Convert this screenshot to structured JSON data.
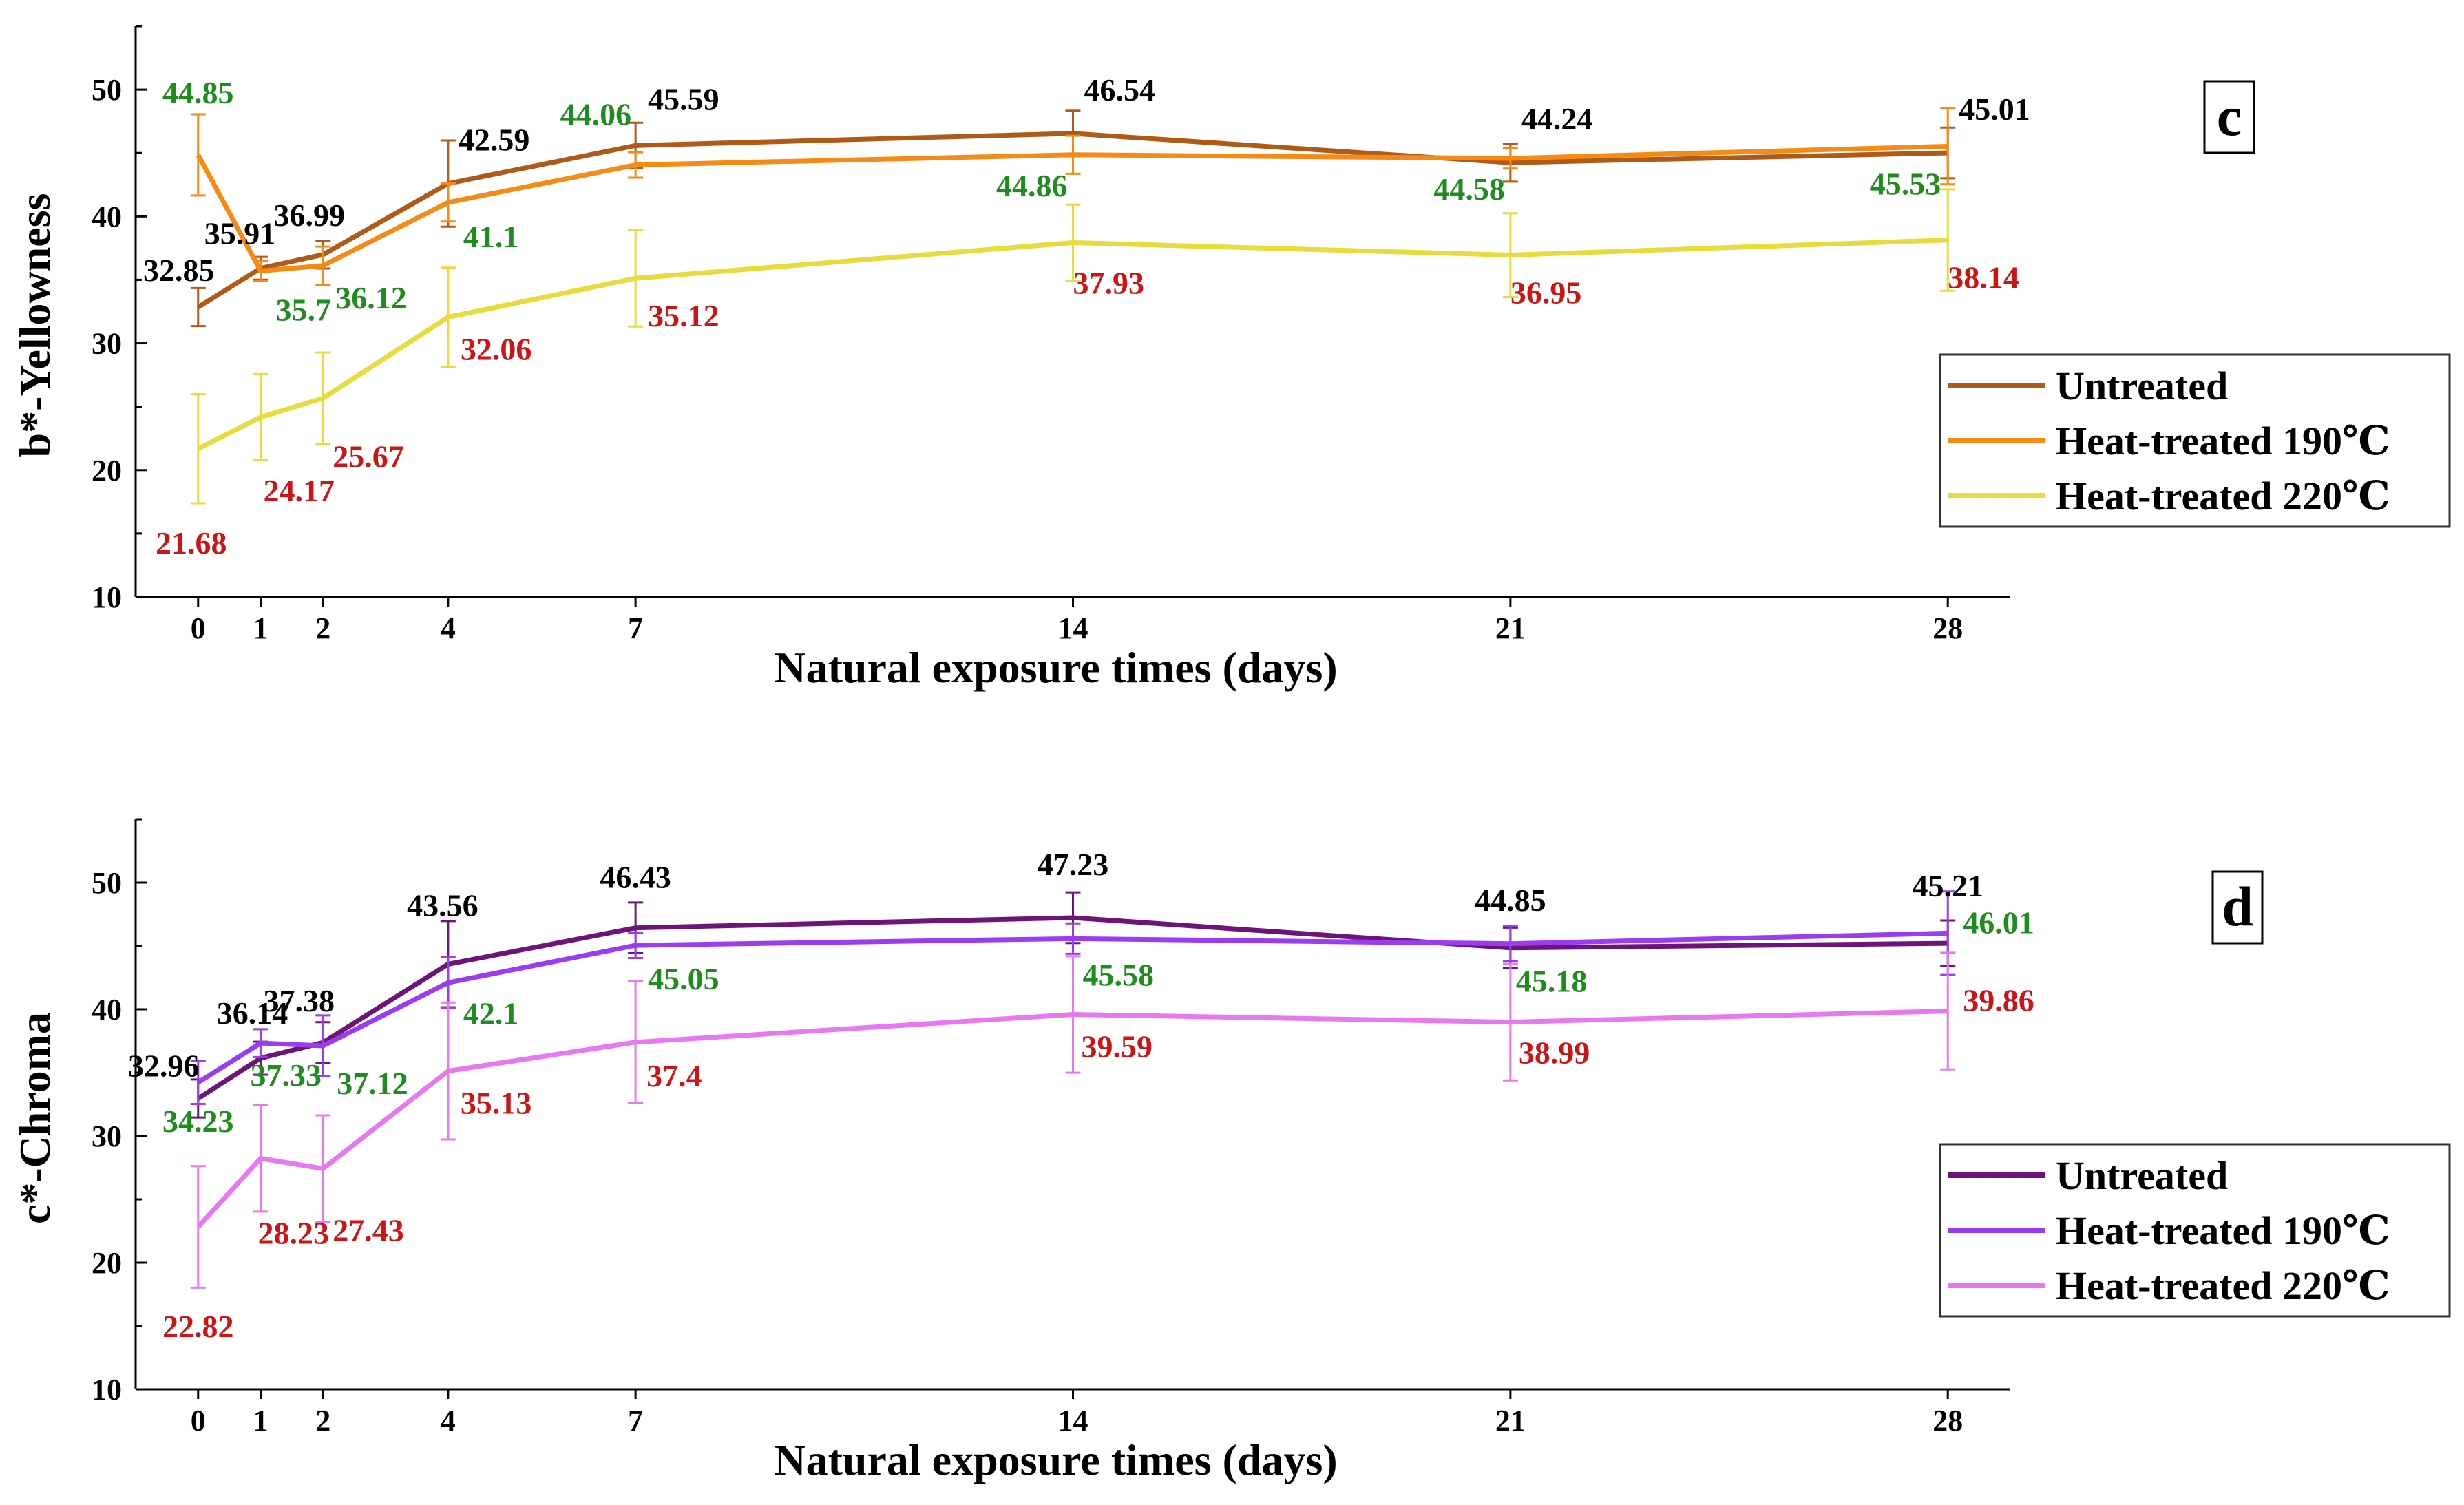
{
  "chart_data": [
    {
      "type": "line",
      "panel_label": "c",
      "xlabel": "Natural exposure times (days)",
      "ylabel": "b*-Yellowness",
      "x": [
        0,
        1,
        2,
        4,
        7,
        14,
        21,
        28
      ],
      "x_tick_labels": [
        "0",
        "1",
        "2",
        "4",
        "7",
        "14",
        "21",
        "28"
      ],
      "xlim": [
        -1,
        29
      ],
      "ylim": [
        10,
        55
      ],
      "y_ticks": [
        10,
        20,
        30,
        40,
        50
      ],
      "y_tick_labels": [
        "10",
        "20",
        "30",
        "40",
        "50"
      ],
      "legend_position": "right",
      "series": [
        {
          "name": "Untreated",
          "color": "#b05a18",
          "label_color": "#000000",
          "values": [
            32.85,
            35.91,
            36.99,
            42.59,
            45.59,
            46.54,
            44.24,
            45.01
          ],
          "errors": [
            1.5,
            0.9,
            1.1,
            3.4,
            1.8,
            1.8,
            1.5,
            2.0
          ],
          "labels": [
            "32.85",
            "35.91",
            "36.99",
            "42.59",
            "45.59",
            "46.54",
            "44.24",
            "45.01"
          ]
        },
        {
          "name": "Heat-treated 190℃",
          "color": "#f58a14",
          "label_color": "#1e8c1e",
          "values": [
            44.85,
            35.7,
            36.12,
            41.1,
            44.06,
            44.86,
            44.58,
            45.53
          ],
          "errors": [
            3.2,
            0.8,
            1.5,
            1.5,
            1.0,
            1.5,
            0.8,
            3.0
          ],
          "labels": [
            "44.85",
            "35.7",
            "36.12",
            "41.1",
            "44.06",
            "44.86",
            "44.58",
            "45.53"
          ]
        },
        {
          "name": "Heat-treated 220℃",
          "color": "#e6dc3c",
          "label_color": "#cc1414",
          "values": [
            21.68,
            24.17,
            25.67,
            32.06,
            35.12,
            37.93,
            36.95,
            38.14
          ],
          "errors": [
            4.3,
            3.4,
            3.6,
            3.9,
            3.8,
            3.0,
            3.3,
            4.0
          ],
          "labels": [
            "21.68",
            "24.17",
            "25.67",
            "32.06",
            "35.12",
            "37.93",
            "36.95",
            "38.14"
          ]
        }
      ]
    },
    {
      "type": "line",
      "panel_label": "d",
      "xlabel": "Natural exposure times (days)",
      "ylabel": "c*-Chroma",
      "x": [
        0,
        1,
        2,
        4,
        7,
        14,
        21,
        28
      ],
      "x_tick_labels": [
        "0",
        "1",
        "2",
        "4",
        "7",
        "14",
        "21",
        "28"
      ],
      "xlim": [
        -1,
        29
      ],
      "ylim": [
        10,
        55
      ],
      "y_ticks": [
        10,
        20,
        30,
        40,
        50
      ],
      "y_tick_labels": [
        "10",
        "20",
        "30",
        "40",
        "50"
      ],
      "legend_position": "right",
      "series": [
        {
          "name": "Untreated",
          "color": "#6e1478",
          "label_color": "#000000",
          "values": [
            32.96,
            36.14,
            37.38,
            43.56,
            46.43,
            47.23,
            44.85,
            45.21
          ],
          "errors": [
            1.5,
            1.3,
            1.6,
            3.4,
            2.0,
            2.0,
            1.6,
            1.8
          ],
          "labels": [
            "32.96",
            "36.14",
            "37.38",
            "43.56",
            "46.43",
            "47.23",
            "44.85",
            "45.21"
          ]
        },
        {
          "name": "Heat-treated 190℃",
          "color": "#9a3cf0",
          "label_color": "#1e8c1e",
          "values": [
            34.23,
            37.33,
            37.12,
            42.1,
            45.05,
            45.58,
            45.18,
            46.01
          ],
          "errors": [
            1.7,
            1.1,
            2.4,
            2.0,
            1.0,
            1.2,
            1.4,
            3.3
          ],
          "labels": [
            "34.23",
            "37.33",
            "37.12",
            "42.1",
            "45.05",
            "45.58",
            "45.18",
            "46.01"
          ]
        },
        {
          "name": "Heat-treated 220℃",
          "color": "#e878f0",
          "label_color": "#cc1414",
          "values": [
            22.82,
            28.23,
            27.43,
            35.13,
            37.4,
            39.59,
            38.99,
            39.86
          ],
          "errors": [
            4.8,
            4.2,
            4.2,
            5.4,
            4.8,
            4.6,
            4.6,
            4.6
          ],
          "labels": [
            "22.82",
            "28.23",
            "27.43",
            "35.13",
            "37.4",
            "39.59",
            "38.99",
            "39.86"
          ]
        }
      ]
    }
  ]
}
